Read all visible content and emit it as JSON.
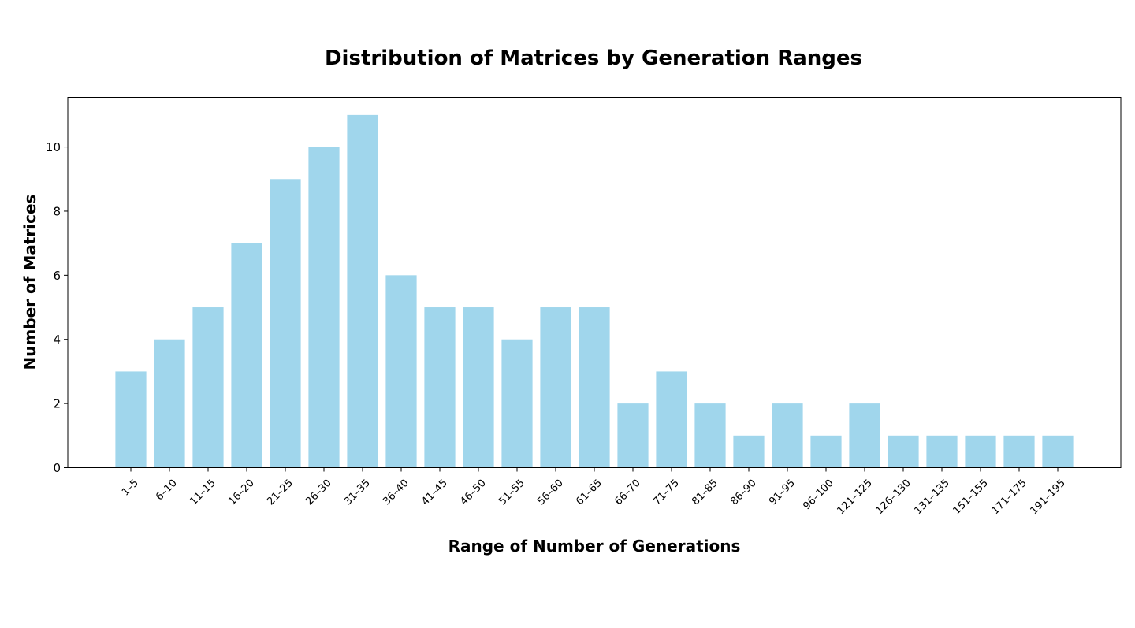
{
  "chart_data": {
    "type": "bar",
    "title": "Distribution of Matrices by Generation Ranges",
    "xlabel": "Range of Number of Generations",
    "ylabel": "Number of Matrices",
    "categories": [
      "1–5",
      "6–10",
      "11–15",
      "16–20",
      "21–25",
      "26–30",
      "31–35",
      "36–40",
      "41–45",
      "46–50",
      "51–55",
      "56–60",
      "61–65",
      "66–70",
      "71–75",
      "81–85",
      "86–90",
      "91–95",
      "96–100",
      "121–125",
      "126–130",
      "131–135",
      "151–155",
      "171–175",
      "191–195"
    ],
    "values": [
      3,
      4,
      5,
      7,
      9,
      10,
      11,
      6,
      5,
      5,
      4,
      5,
      5,
      2,
      3,
      2,
      1,
      2,
      1,
      2,
      1,
      1,
      1,
      1,
      1
    ],
    "ylim": [
      0,
      11.55
    ],
    "yticks": [
      "0",
      "2",
      "4",
      "6",
      "8",
      "10"
    ],
    "bar_color": "#a0d6ec",
    "grid": false,
    "legend": "none"
  }
}
